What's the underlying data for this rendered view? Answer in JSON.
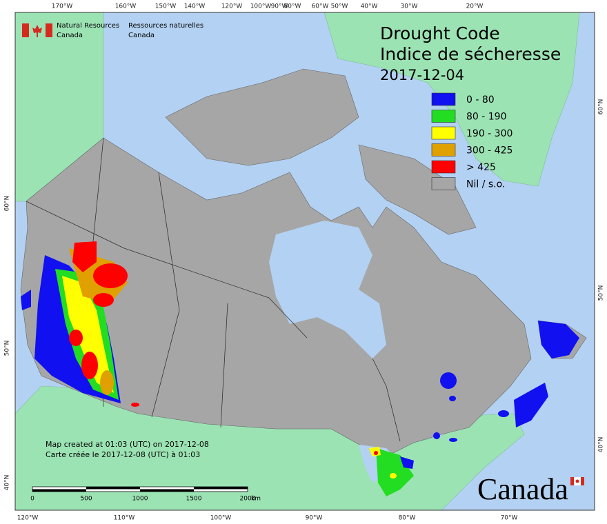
{
  "header": {
    "logo_en": [
      "Natural Resources",
      "Canada"
    ],
    "logo_fr": [
      "Ressources naturelles",
      "Canada"
    ]
  },
  "title": {
    "line1": "Drought Code",
    "line2": "Indice de sécheresse",
    "date": "2017-12-04"
  },
  "legend": [
    {
      "label": "0 - 80",
      "color": "#1010f0"
    },
    {
      "label": "80 - 190",
      "color": "#22dd22"
    },
    {
      "label": "190 - 300",
      "color": "#ffff00"
    },
    {
      "label": "300 - 425",
      "color": "#e0a000"
    },
    {
      "label": "> 425",
      "color": "#ff0000"
    },
    {
      "label": "Nil / s.o.",
      "color": "#a6a6a6"
    }
  ],
  "notes": [
    "Map created at 01:03 (UTC) on 2017-12-08",
    "Carte créée le 2017-12-08 (UTC) à 01:03"
  ],
  "scale_bar": {
    "labels": [
      "0",
      "500",
      "1000",
      "1500",
      "2000"
    ],
    "unit": "km"
  },
  "wordmark": "Canada",
  "graticule": {
    "top": [
      "170°W",
      "160°W",
      "150°W",
      "140°W",
      "120°W",
      "100°W",
      "90°W",
      "80°W",
      "60°W",
      "50°W",
      "40°W",
      "30°W",
      "20°W"
    ],
    "bottom": [
      "120°W",
      "110°W",
      "100°W",
      "90°W",
      "80°W",
      "70°W"
    ],
    "left": [
      "60°N",
      "50°N",
      "40°N"
    ],
    "right": [
      "60°N",
      "50°N",
      "40°N"
    ]
  }
}
